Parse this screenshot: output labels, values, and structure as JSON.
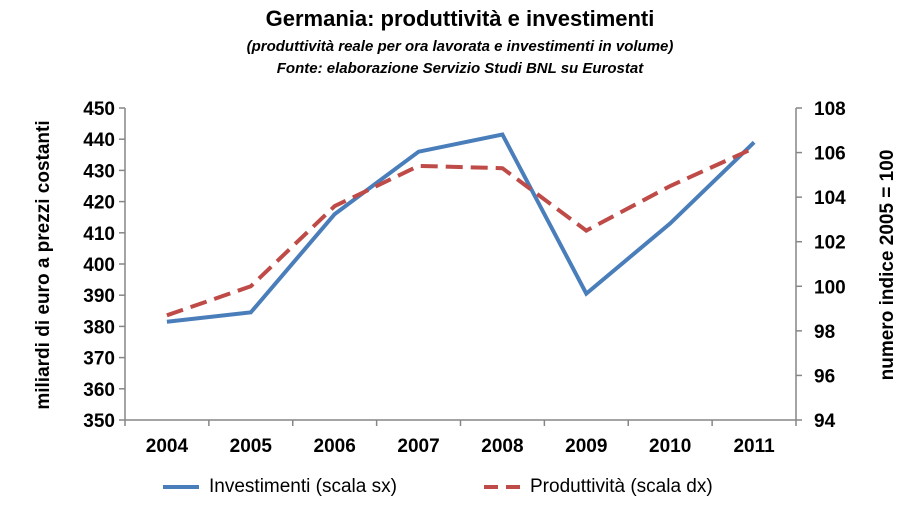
{
  "chart_data": {
    "type": "line",
    "title": "Germania: produttività e investimenti",
    "subtitle_1": "(produttività reale per ora lavorata e investimenti in volume)",
    "subtitle_2": "Fonte: elaborazione  Servizio Studi BNL su Eurostat",
    "categories": [
      "2004",
      "2005",
      "2006",
      "2007",
      "2008",
      "2009",
      "2010",
      "2011"
    ],
    "y_left": {
      "label": "miliardi di euro a prezzi costanti",
      "ylim": [
        350,
        450
      ],
      "ticks": [
        "350",
        "360",
        "370",
        "380",
        "390",
        "400",
        "410",
        "420",
        "430",
        "440",
        "450"
      ]
    },
    "y_right": {
      "label": "numero indice 2005 = 100",
      "ylim": [
        94,
        108
      ],
      "ticks": [
        "94",
        "96",
        "98",
        "100",
        "102",
        "104",
        "106",
        "108"
      ]
    },
    "series": [
      {
        "name": "Investimenti (scala sx)",
        "axis": "left",
        "style": "solid",
        "color": "#4a7ebb",
        "values": [
          381.5,
          384.5,
          416,
          436,
          441.5,
          390.5,
          413,
          439
        ]
      },
      {
        "name": "Produttività (scala dx)",
        "axis": "right",
        "style": "dashed",
        "color": "#be4b48",
        "values": [
          98.7,
          100,
          103.6,
          105.4,
          105.3,
          102.5,
          104.5,
          106.2
        ]
      }
    ],
    "grid": false,
    "legend_position": "bottom"
  }
}
